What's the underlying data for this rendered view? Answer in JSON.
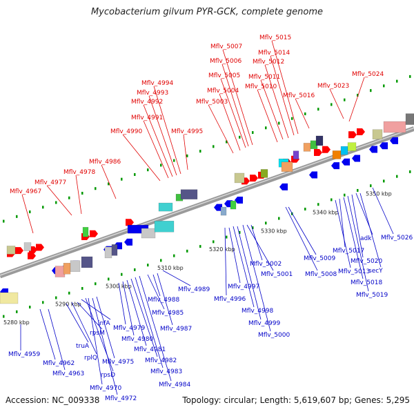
{
  "title": "Mycobacterium gilvum PYR-GCK, complete genome",
  "footer": {
    "accession": "Accession: NC_009338",
    "summary": "Topology: circular; Length: 5,619,607 bp; Genes: 5,295"
  },
  "colors": {
    "above_labels": "#e00000",
    "below_labels": "#0000c8",
    "axis": "#888888",
    "tick": "#009900",
    "forward_arrow": "#ff0000",
    "reverse_arrow": "#0000ee"
  },
  "kbp_ticks": [
    "5280 kbp",
    "5290 kbp",
    "5300 kbp",
    "5310 kbp",
    "5320 kbp",
    "5330 kbp",
    "5340 kbp",
    "5350 kbp"
  ],
  "above_labels": [
    "Mflv_4967",
    "Mflv_4977",
    "Mflv_4978",
    "Mflv_4986",
    "Mflv_4990",
    "Mflv_4991",
    "Mflv_4992",
    "Mflv_4993",
    "Mflv_4994",
    "Mflv_4995",
    "Mflv_5003",
    "Mflv_5004",
    "Mflv_5005",
    "Mflv_5006",
    "Mflv_5007",
    "Mflv_5010",
    "Mflv_5011",
    "Mflv_5012",
    "Mflv_5014",
    "Mflv_5015",
    "Mflv_5016",
    "Mflv_5023",
    "Mflv_5024"
  ],
  "below_labels": [
    "Mflv_4959",
    "Mflv_4962",
    "Mflv_4963",
    "truA",
    "rplQ",
    "rpsM",
    "infA",
    "rpsD",
    "Mflv_4970",
    "Mflv_4972",
    "Mflv_4975",
    "Mflv_4979",
    "Mflv_4980",
    "Mflv_4981",
    "Mflv_4982",
    "Mflv_4983",
    "Mflv_4984",
    "Mflv_4985",
    "Mflv_4987",
    "Mflv_4988",
    "Mflv_4989",
    "Mflv_4996",
    "Mflv_4997",
    "Mflv_4998",
    "Mflv_4999",
    "Mflv_5000",
    "Mflv_5001",
    "Mflv_5002",
    "Mflv_5008",
    "Mflv_5009",
    "Mflv_5013",
    "Mflv_5017",
    "Mflv_5018",
    "Mflv_5019",
    "Mflv_5020",
    "adk",
    "secY",
    "Mflv_5026"
  ]
}
